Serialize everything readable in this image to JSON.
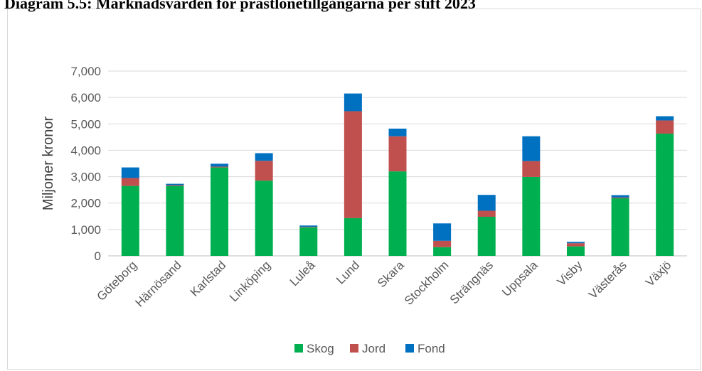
{
  "title": "Diagram 5.5: Marknadsvärden för prästlönetillgångarna per stift 2023",
  "chart_data": {
    "type": "bar",
    "stacked": true,
    "ylabel": "Miljoner kronor",
    "ylim": [
      0,
      7000
    ],
    "yticks": [
      "0",
      "1,000",
      "2,000",
      "3,000",
      "4,000",
      "5,000",
      "6,000",
      "7,000"
    ],
    "grid": true,
    "legend_position": "bottom",
    "categories": [
      "Göteborg",
      "Härnösand",
      "Karlstad",
      "Linköping",
      "Luleå",
      "Lund",
      "Skara",
      "Stockholm",
      "Strängnäs",
      "Uppsala",
      "Visby",
      "Västerås",
      "Växjö"
    ],
    "series": [
      {
        "name": "Skog",
        "color": "#00b050",
        "values": [
          2650,
          2650,
          3350,
          2850,
          1080,
          1430,
          3200,
          330,
          1480,
          2990,
          360,
          2180,
          4630
        ]
      },
      {
        "name": "Jord",
        "color": "#c0504d",
        "values": [
          300,
          30,
          30,
          750,
          20,
          4050,
          1330,
          240,
          230,
          600,
          120,
          30,
          500
        ]
      },
      {
        "name": "Fond",
        "color": "#0070c0",
        "values": [
          400,
          50,
          110,
          290,
          50,
          670,
          290,
          660,
          600,
          940,
          50,
          90,
          160
        ]
      }
    ]
  }
}
